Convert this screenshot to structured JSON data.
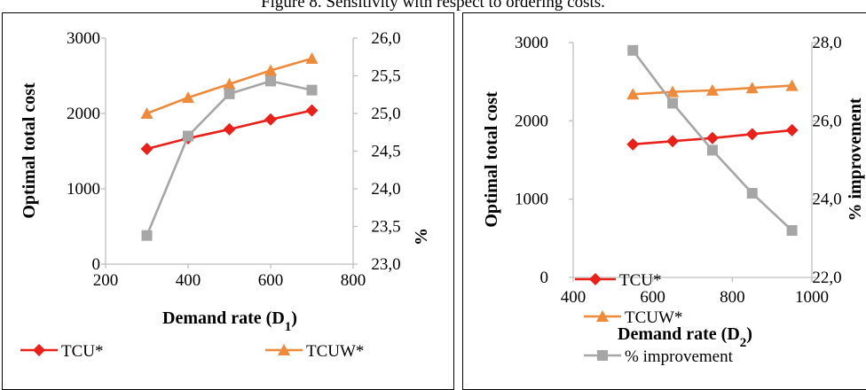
{
  "caption": "Figure 8. Sensitivity with respect to ordering costs.",
  "colors": {
    "tcu": "#e8211b",
    "tcuw": "#ee8a3c",
    "improvement": "#a6a6a6",
    "axis": "#bfbfbf"
  },
  "chart_data": [
    {
      "type": "line",
      "xlabel": "Demand rate (D",
      "xlabel_sub": "1",
      "xlabel_end": ")",
      "ylabel": "Optimal total cost",
      "y2label": "%",
      "xlim": [
        200,
        800
      ],
      "xticks": [
        "200",
        "400",
        "600",
        "800"
      ],
      "ylim": [
        0,
        3000
      ],
      "yticks": [
        "0",
        "1000",
        "2000",
        "3000"
      ],
      "y2lim": [
        23.0,
        26.0
      ],
      "y2ticks": [
        "23,0",
        "23,5",
        "24,0",
        "24,5",
        "25,0",
        "25,5",
        "26,0"
      ],
      "legend_position": "bottom",
      "x": [
        300,
        400,
        500,
        600,
        700
      ],
      "series": [
        {
          "name": "TCU*",
          "axis": "left",
          "marker": "diamond",
          "color": "#e8211b",
          "values": [
            1530,
            1670,
            1790,
            1920,
            2040
          ]
        },
        {
          "name": "TCUW*",
          "axis": "left",
          "marker": "triangle",
          "color": "#ee8a3c",
          "values": [
            2000,
            2210,
            2390,
            2570,
            2730
          ]
        },
        {
          "name": "",
          "axis": "right",
          "marker": "square",
          "color": "#a6a6a6",
          "values": [
            23.38,
            24.7,
            25.26,
            25.43,
            25.31
          ]
        }
      ]
    },
    {
      "type": "line",
      "xlabel": "Demand rate (D",
      "xlabel_sub": "2",
      "xlabel_end": ")",
      "ylabel": "Optimal total cost",
      "y2label": "% improvement",
      "xlim": [
        400,
        1000
      ],
      "xticks": [
        "400",
        "600",
        "800",
        "1000"
      ],
      "ylim": [
        0,
        3000
      ],
      "yticks": [
        "0",
        "1000",
        "2000",
        "3000"
      ],
      "y2lim": [
        22.0,
        28.0
      ],
      "y2ticks": [
        "22,0",
        "24,0",
        "26,0",
        "28,0"
      ],
      "legend_position": "left-bottom",
      "x": [
        550,
        650,
        750,
        850,
        950
      ],
      "series": [
        {
          "name": "TCU*",
          "axis": "left",
          "marker": "diamond",
          "color": "#e8211b",
          "values": [
            1700,
            1740,
            1780,
            1830,
            1880
          ]
        },
        {
          "name": "TCUW*",
          "axis": "left",
          "marker": "triangle",
          "color": "#ee8a3c",
          "values": [
            2340,
            2370,
            2390,
            2420,
            2450
          ]
        },
        {
          "name": "% improvement",
          "axis": "right",
          "marker": "square",
          "color": "#a6a6a6",
          "values": [
            27.8,
            26.45,
            25.25,
            24.15,
            23.2
          ]
        }
      ]
    }
  ]
}
